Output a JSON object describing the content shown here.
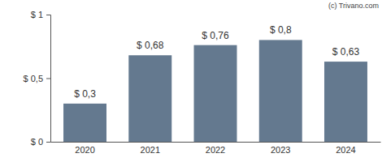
{
  "chart_data": {
    "type": "bar",
    "annotations": [
      "(c) Trivano.com"
    ],
    "categories": [
      "2020",
      "2021",
      "2022",
      "2023",
      "2024"
    ],
    "values": [
      0.3,
      0.68,
      0.76,
      0.8,
      0.63
    ],
    "value_labels": [
      "$ 0,3",
      "$ 0,68",
      "$ 0,76",
      "$ 0,8",
      "$ 0,63"
    ],
    "data_labels": true,
    "color": "#64798f",
    "ylim": [
      0,
      1
    ],
    "yticks": [
      {
        "value": 0,
        "label": "$ 0"
      },
      {
        "value": 0.5,
        "label": "$ 0,5"
      },
      {
        "value": 1,
        "label": "$ 1"
      }
    ],
    "grid": false
  }
}
